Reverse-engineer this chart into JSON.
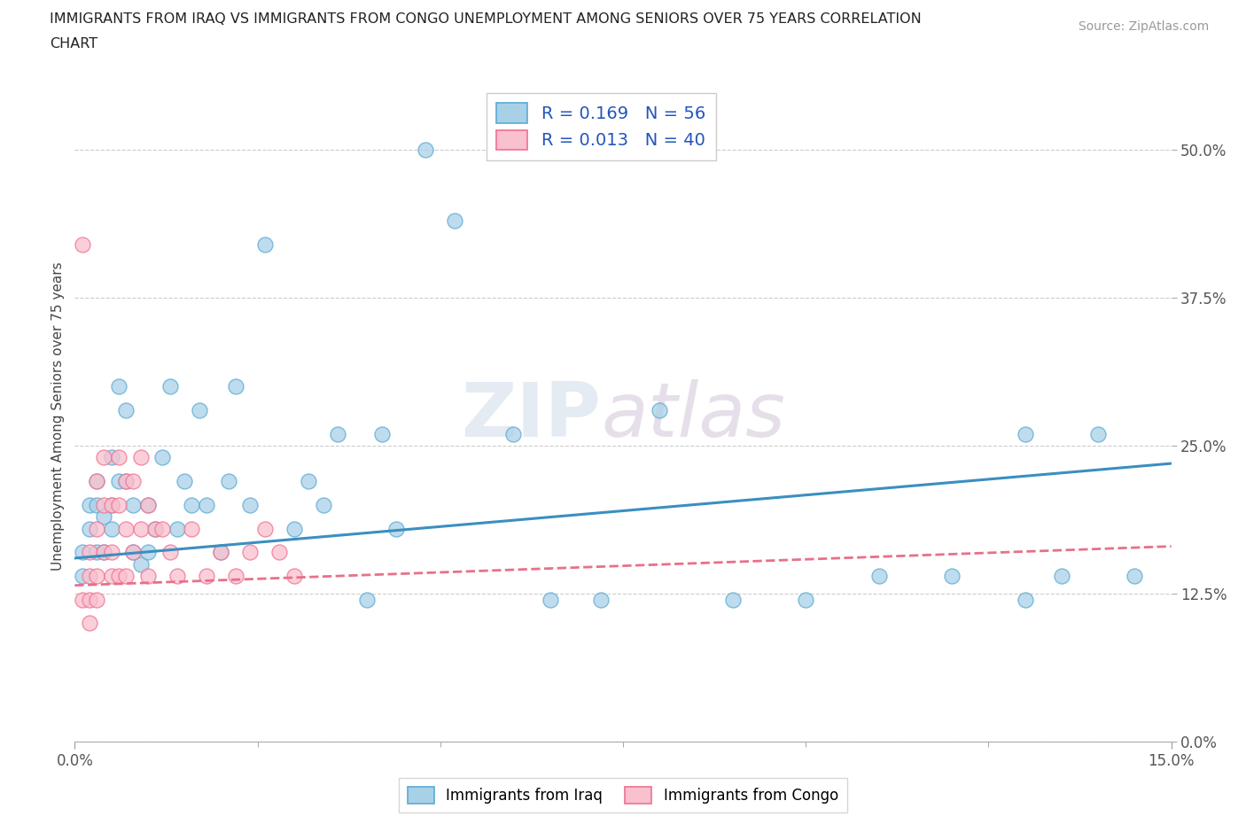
{
  "title_line1": "IMMIGRANTS FROM IRAQ VS IMMIGRANTS FROM CONGO UNEMPLOYMENT AMONG SENIORS OVER 75 YEARS CORRELATION",
  "title_line2": "CHART",
  "source": "Source: ZipAtlas.com",
  "ylabel": "Unemployment Among Seniors over 75 years",
  "xlim": [
    0.0,
    0.15
  ],
  "ylim": [
    0.0,
    0.55
  ],
  "yticks": [
    0.0,
    0.125,
    0.25,
    0.375,
    0.5
  ],
  "ytick_labels": [
    "0.0%",
    "12.5%",
    "25.0%",
    "37.5%",
    "50.0%"
  ],
  "xtick_left_label": "0.0%",
  "xtick_right_label": "15.0%",
  "R_iraq": 0.169,
  "N_iraq": 56,
  "R_congo": 0.013,
  "N_congo": 40,
  "iraq_fill_color": "#a8d1e8",
  "iraq_edge_color": "#5baad4",
  "congo_fill_color": "#f9c0ce",
  "congo_edge_color": "#f07090",
  "iraq_line_color": "#3a8fc0",
  "congo_line_color": "#e8708a",
  "watermark": "ZIPatlas",
  "iraq_x": [
    0.001,
    0.001,
    0.002,
    0.002,
    0.003,
    0.003,
    0.003,
    0.004,
    0.004,
    0.005,
    0.005,
    0.005,
    0.006,
    0.006,
    0.007,
    0.007,
    0.008,
    0.008,
    0.009,
    0.01,
    0.01,
    0.011,
    0.012,
    0.013,
    0.014,
    0.015,
    0.016,
    0.017,
    0.018,
    0.02,
    0.021,
    0.022,
    0.024,
    0.026,
    0.03,
    0.032,
    0.034,
    0.036,
    0.04,
    0.042,
    0.044,
    0.048,
    0.052,
    0.06,
    0.065,
    0.072,
    0.08,
    0.09,
    0.1,
    0.11,
    0.12,
    0.13,
    0.13,
    0.135,
    0.14,
    0.145
  ],
  "iraq_y": [
    0.16,
    0.14,
    0.2,
    0.18,
    0.22,
    0.2,
    0.16,
    0.19,
    0.16,
    0.24,
    0.2,
    0.18,
    0.3,
    0.22,
    0.28,
    0.22,
    0.2,
    0.16,
    0.15,
    0.2,
    0.16,
    0.18,
    0.24,
    0.3,
    0.18,
    0.22,
    0.2,
    0.28,
    0.2,
    0.16,
    0.22,
    0.3,
    0.2,
    0.42,
    0.18,
    0.22,
    0.2,
    0.26,
    0.12,
    0.26,
    0.18,
    0.5,
    0.44,
    0.26,
    0.12,
    0.12,
    0.28,
    0.12,
    0.12,
    0.14,
    0.14,
    0.12,
    0.26,
    0.14,
    0.26,
    0.14
  ],
  "congo_x": [
    0.001,
    0.001,
    0.002,
    0.002,
    0.002,
    0.002,
    0.003,
    0.003,
    0.003,
    0.003,
    0.004,
    0.004,
    0.004,
    0.005,
    0.005,
    0.005,
    0.006,
    0.006,
    0.006,
    0.007,
    0.007,
    0.007,
    0.008,
    0.008,
    0.009,
    0.009,
    0.01,
    0.01,
    0.011,
    0.012,
    0.013,
    0.014,
    0.016,
    0.018,
    0.02,
    0.022,
    0.024,
    0.026,
    0.028,
    0.03
  ],
  "congo_y": [
    0.42,
    0.12,
    0.16,
    0.14,
    0.12,
    0.1,
    0.22,
    0.18,
    0.14,
    0.12,
    0.24,
    0.2,
    0.16,
    0.2,
    0.16,
    0.14,
    0.24,
    0.2,
    0.14,
    0.22,
    0.18,
    0.14,
    0.22,
    0.16,
    0.24,
    0.18,
    0.2,
    0.14,
    0.18,
    0.18,
    0.16,
    0.14,
    0.18,
    0.14,
    0.16,
    0.14,
    0.16,
    0.18,
    0.16,
    0.14
  ]
}
